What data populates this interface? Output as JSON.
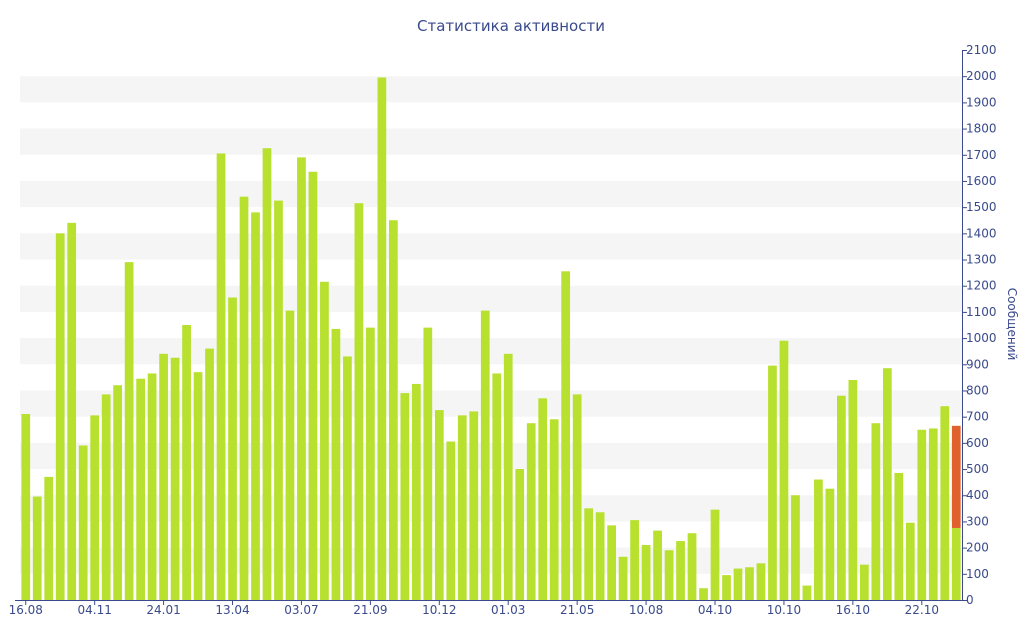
{
  "chart_data": {
    "type": "bar",
    "title": "Статистика активности",
    "xlabel": "",
    "ylabel": "Сообщений",
    "y_axis_position": "right",
    "ylim": [
      0,
      2100
    ],
    "yticks": [
      0,
      100,
      200,
      300,
      400,
      500,
      600,
      700,
      800,
      900,
      1000,
      1100,
      1200,
      1300,
      1400,
      1500,
      1600,
      1700,
      1800,
      1900,
      2000,
      2100
    ],
    "grid": "alternating horizontal bands",
    "legend": "none",
    "colors": {
      "bar": "#b8e02e",
      "highlight": "#e0612b",
      "axis": "#3a4a8c",
      "band": "#f5f5f5"
    },
    "x_tick_labels": [
      {
        "index": 0,
        "label": "16.08"
      },
      {
        "index": 6,
        "label": "04.11"
      },
      {
        "index": 12,
        "label": "24.01"
      },
      {
        "index": 18,
        "label": "13.04"
      },
      {
        "index": 24,
        "label": "03.07"
      },
      {
        "index": 30,
        "label": "21.09"
      },
      {
        "index": 36,
        "label": "10.12"
      },
      {
        "index": 42,
        "label": "01.03"
      },
      {
        "index": 48,
        "label": "21.05"
      },
      {
        "index": 54,
        "label": "10.08"
      },
      {
        "index": 60,
        "label": "04.10"
      },
      {
        "index": 66,
        "label": "10.10"
      },
      {
        "index": 72,
        "label": "16.10"
      },
      {
        "index": 78,
        "label": "22.10"
      }
    ],
    "values": [
      710,
      395,
      470,
      1400,
      1440,
      590,
      705,
      785,
      820,
      1290,
      845,
      865,
      940,
      925,
      1050,
      870,
      960,
      1705,
      1155,
      1540,
      1480,
      1725,
      1525,
      1105,
      1690,
      1635,
      1215,
      1035,
      930,
      1515,
      1040,
      1995,
      1450,
      790,
      825,
      1040,
      725,
      605,
      705,
      720,
      1105,
      865,
      940,
      500,
      675,
      770,
      690,
      1255,
      785,
      350,
      335,
      285,
      165,
      305,
      210,
      265,
      190,
      225,
      255,
      45,
      345,
      95,
      120,
      125,
      140,
      895,
      990,
      400,
      55,
      460,
      425,
      780,
      840,
      135,
      675,
      885,
      485,
      295,
      650,
      655,
      740,
      665
    ],
    "last_bar_split": {
      "lower": 275,
      "upper": 390
    }
  }
}
